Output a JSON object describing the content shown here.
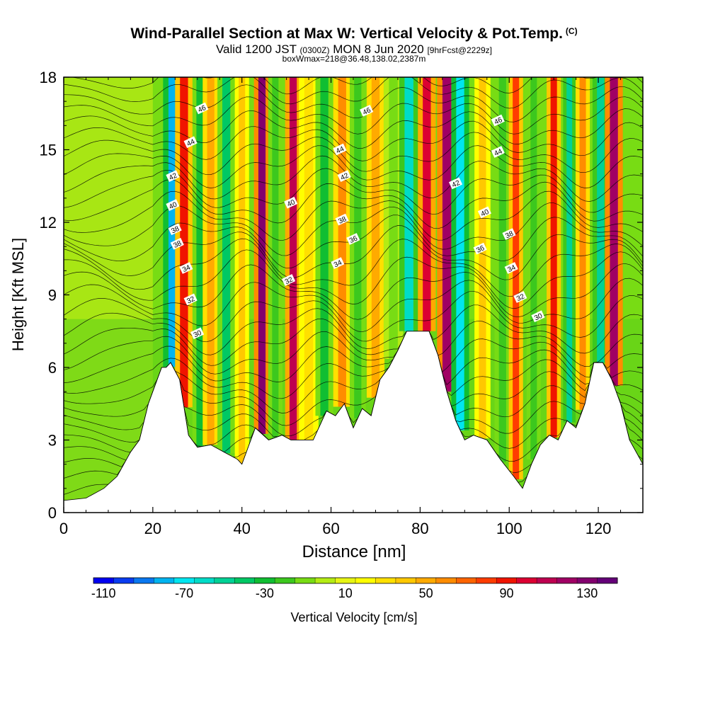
{
  "header": {
    "title": "Wind-Parallel Section at Max W: Vertical Velocity & Pot.Temp.",
    "copyright": "(C)",
    "valid_prefix": "Valid 1200 JST",
    "utc": "(0300Z)",
    "date": "MON 8 Jun 2020",
    "forecast": "[9hrFcst@2229z]",
    "boxwmax": "boxWmax=218@36.48,138.02,2387m"
  },
  "chart_data": {
    "type": "heatmap",
    "title": "Wind-Parallel Section at Max W: Vertical Velocity & Pot.Temp.",
    "xlabel": "Distance [nm]",
    "ylabel": "Height [Kft MSL]",
    "xlim": [
      0,
      130
    ],
    "ylim": [
      0,
      18
    ],
    "x_ticks": [
      "0",
      "20",
      "40",
      "60",
      "80",
      "100",
      "120"
    ],
    "y_ticks": [
      "0",
      "3",
      "6",
      "9",
      "12",
      "15",
      "18"
    ],
    "colorbar": {
      "label": "Vertical Velocity [cm/s]",
      "tick_labels": [
        "-110",
        "-70",
        "-30",
        "10",
        "50",
        "90",
        "130"
      ],
      "colors": [
        "#0000f0",
        "#0a3cf0",
        "#0a78f0",
        "#00b4f0",
        "#00e6f0",
        "#00dcc8",
        "#00d296",
        "#00c864",
        "#10be32",
        "#3cc81e",
        "#78dc14",
        "#b4ec14",
        "#e6f514",
        "#ffff00",
        "#ffe000",
        "#ffc800",
        "#ffaa00",
        "#ff8c00",
        "#ff6400",
        "#ff3c00",
        "#f01400",
        "#dc0032",
        "#be0050",
        "#a00064",
        "#82006e",
        "#640078"
      ]
    },
    "terrain": {
      "x": [
        0,
        5,
        9,
        12,
        15,
        17,
        19,
        21,
        22,
        23,
        24,
        26,
        28,
        30,
        33,
        36,
        39,
        40,
        41,
        43,
        46,
        49,
        51,
        53,
        56,
        59,
        61,
        63,
        65,
        67,
        69,
        71,
        73,
        75,
        77,
        80,
        82,
        84,
        86,
        88,
        90,
        92,
        95,
        98,
        101,
        103,
        105,
        107,
        109,
        111,
        113,
        115,
        117,
        119,
        121,
        123,
        125,
        127,
        130
      ],
      "height_kft": [
        0.5,
        0.6,
        1.0,
        1.5,
        2.5,
        3.0,
        4.5,
        5.5,
        6.0,
        6.0,
        6.2,
        5.5,
        3.2,
        2.7,
        2.8,
        2.5,
        2.2,
        2.0,
        2.5,
        3.5,
        3.0,
        3.2,
        3.0,
        3.0,
        3.0,
        4.2,
        4.0,
        4.5,
        3.5,
        4.3,
        4.0,
        5.5,
        6.0,
        6.7,
        7.5,
        7.5,
        7.5,
        6.5,
        5.0,
        3.8,
        3.0,
        3.2,
        3.0,
        2.2,
        1.5,
        1.0,
        2.0,
        2.8,
        3.2,
        3.0,
        3.8,
        3.5,
        4.5,
        6.2,
        6.2,
        5.5,
        4.5,
        3.0,
        2.0
      ]
    },
    "updraft_columns": [
      {
        "x": 24.5,
        "w": 2.2,
        "value": -100
      },
      {
        "x": 27.0,
        "w": 2.0,
        "value": 90
      },
      {
        "x": 30.5,
        "w": 1.6,
        "value": -40
      },
      {
        "x": 33.0,
        "w": 1.8,
        "value": 50
      },
      {
        "x": 36.5,
        "w": 2.0,
        "value": -50
      },
      {
        "x": 40.0,
        "w": 1.6,
        "value": 40
      },
      {
        "x": 44.5,
        "w": 1.8,
        "value": 140
      },
      {
        "x": 47.5,
        "w": 1.6,
        "value": -30
      },
      {
        "x": 51.5,
        "w": 1.8,
        "value": 120
      },
      {
        "x": 55.0,
        "w": 2.2,
        "value": 30
      },
      {
        "x": 58.5,
        "w": 2.0,
        "value": -40
      },
      {
        "x": 62.5,
        "w": 2.0,
        "value": 60
      },
      {
        "x": 66.0,
        "w": 1.8,
        "value": -30
      },
      {
        "x": 70.0,
        "w": 2.0,
        "value": 50
      },
      {
        "x": 74.0,
        "w": 2.2,
        "value": -20
      },
      {
        "x": 77.5,
        "w": 2.2,
        "value": -70
      },
      {
        "x": 81.5,
        "w": 2.0,
        "value": 110
      },
      {
        "x": 86.0,
        "w": 2.2,
        "value": 130
      },
      {
        "x": 89.0,
        "w": 2.0,
        "value": -80
      },
      {
        "x": 94.0,
        "w": 1.8,
        "value": 40
      },
      {
        "x": 98.5,
        "w": 1.8,
        "value": -30
      },
      {
        "x": 101.5,
        "w": 1.6,
        "value": 80
      },
      {
        "x": 105.5,
        "w": 1.6,
        "value": -30
      },
      {
        "x": 110.0,
        "w": 1.6,
        "value": 90
      },
      {
        "x": 113.5,
        "w": 1.4,
        "value": -60
      },
      {
        "x": 116.5,
        "w": 1.6,
        "value": 60
      },
      {
        "x": 120.5,
        "w": 1.8,
        "value": -60
      },
      {
        "x": 123.5,
        "w": 2.0,
        "value": 130
      }
    ],
    "isentropes": {
      "label_values": [
        "30",
        "32",
        "34",
        "36",
        "38",
        "40",
        "42",
        "44",
        "46"
      ],
      "labels": [
        {
          "text": "46",
          "x": 31,
          "y": 16.7
        },
        {
          "text": "44",
          "x": 28.5,
          "y": 15.3
        },
        {
          "text": "42",
          "x": 24.5,
          "y": 13.9
        },
        {
          "text": "40",
          "x": 24.5,
          "y": 12.7
        },
        {
          "text": "38",
          "x": 25,
          "y": 11.7
        },
        {
          "text": "38",
          "x": 25.5,
          "y": 11.1
        },
        {
          "text": "34",
          "x": 27.5,
          "y": 10.1
        },
        {
          "text": "32",
          "x": 28.5,
          "y": 8.8
        },
        {
          "text": "30",
          "x": 30,
          "y": 7.4
        },
        {
          "text": "40",
          "x": 51,
          "y": 12.8
        },
        {
          "text": "32",
          "x": 50.5,
          "y": 9.6
        },
        {
          "text": "34",
          "x": 61.5,
          "y": 10.3
        },
        {
          "text": "38",
          "x": 62.5,
          "y": 12.1
        },
        {
          "text": "36",
          "x": 65,
          "y": 11.3
        },
        {
          "text": "42",
          "x": 63,
          "y": 13.9
        },
        {
          "text": "44",
          "x": 62,
          "y": 15.0
        },
        {
          "text": "46",
          "x": 68,
          "y": 16.6
        },
        {
          "text": "42",
          "x": 88,
          "y": 13.6
        },
        {
          "text": "40",
          "x": 94.5,
          "y": 12.4
        },
        {
          "text": "38",
          "x": 100,
          "y": 11.5
        },
        {
          "text": "36",
          "x": 93.5,
          "y": 10.9
        },
        {
          "text": "34",
          "x": 100.5,
          "y": 10.1
        },
        {
          "text": "32",
          "x": 102.5,
          "y": 8.9
        },
        {
          "text": "30",
          "x": 106.5,
          "y": 8.1
        },
        {
          "text": "46",
          "x": 97.5,
          "y": 16.2
        },
        {
          "text": "44",
          "x": 97.5,
          "y": 14.9
        }
      ]
    },
    "grid": false,
    "legend": "colorbar-bottom"
  }
}
